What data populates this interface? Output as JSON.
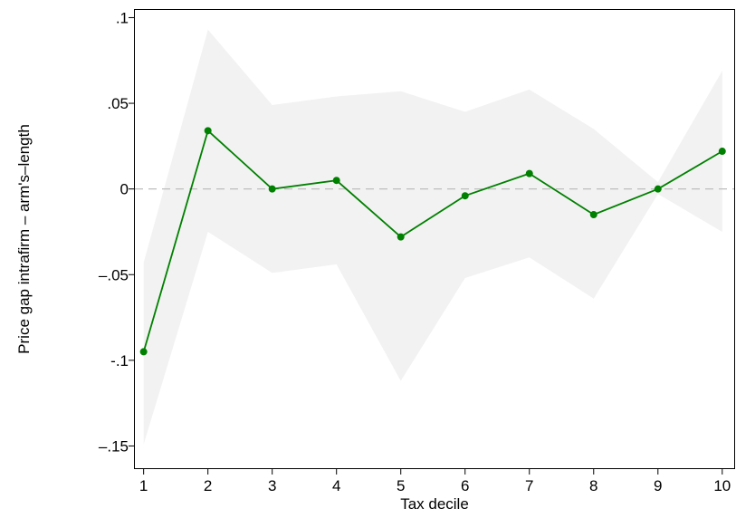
{
  "chart_data": {
    "type": "line",
    "title": "",
    "xlabel": "Tax decile",
    "ylabel": "Price gap intrafirm – arm's–length",
    "x": [
      1,
      2,
      3,
      4,
      5,
      6,
      7,
      8,
      9,
      10
    ],
    "xticks": [
      1,
      2,
      3,
      4,
      5,
      6,
      7,
      8,
      9,
      10
    ],
    "xtick_labels": [
      "1",
      "2",
      "3",
      "4",
      "5",
      "6",
      "7",
      "8",
      "9",
      "10"
    ],
    "yticks": [
      0.1,
      0.05,
      0,
      -0.05,
      -0.1,
      -0.15
    ],
    "ytick_labels": [
      ".1",
      ".05",
      "0",
      "–.05",
      "-.1",
      "–.15"
    ],
    "xlim": [
      0.85,
      10.2
    ],
    "ylim": [
      -0.1635,
      0.105
    ],
    "grid": false,
    "reference_line": {
      "y": 0,
      "style": "dashed",
      "color": "#bdbdbd"
    },
    "series": [
      {
        "values": [
          -0.095,
          0.034,
          0.0,
          0.005,
          -0.028,
          -0.004,
          0.009,
          -0.015,
          0.0,
          0.022
        ],
        "ci_upper": [
          -0.043,
          0.093,
          0.049,
          0.054,
          0.057,
          0.045,
          0.058,
          0.035,
          0.004,
          0.069
        ],
        "ci_lower": [
          -0.149,
          -0.025,
          -0.049,
          -0.044,
          -0.112,
          -0.052,
          -0.04,
          -0.064,
          -0.003,
          -0.025
        ],
        "color": "#008000",
        "band_color": "#f2f2f2"
      }
    ]
  }
}
